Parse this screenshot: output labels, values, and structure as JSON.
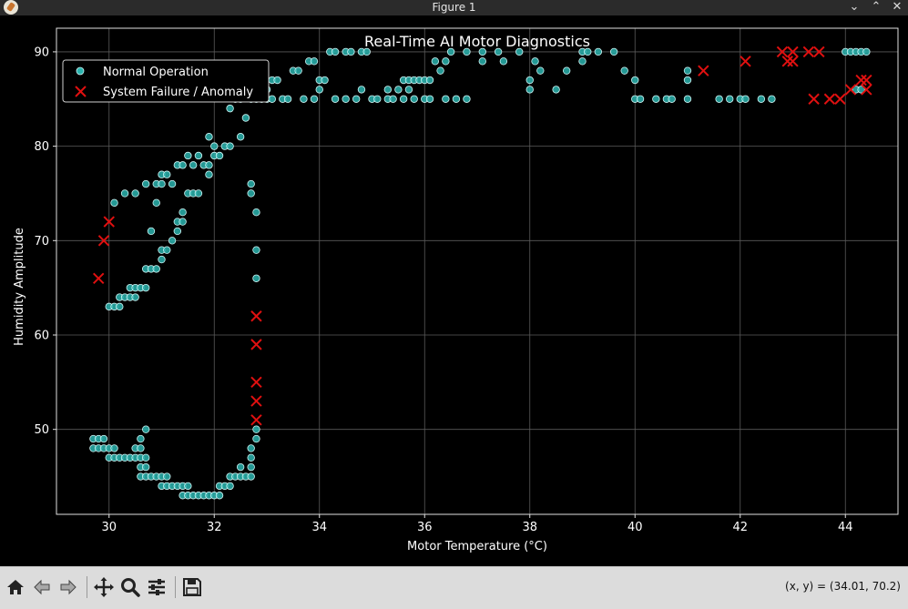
{
  "window": {
    "title": "Figure 1"
  },
  "toolbar": {
    "buttons": [
      {
        "name": "home-icon"
      },
      {
        "name": "back-icon"
      },
      {
        "name": "forward-icon"
      },
      {
        "name": "pan-icon"
      },
      {
        "name": "zoom-icon"
      },
      {
        "name": "configure-subplots-icon"
      },
      {
        "name": "save-icon"
      }
    ],
    "coords": "(x, y) = (34.01, 70.2)"
  },
  "chart_data": {
    "type": "scatter",
    "title": "Real-Time AI Motor Diagnostics",
    "xlabel": "Motor Temperature (°C)",
    "ylabel": "Humidity Amplitude",
    "xlim": [
      29.0,
      45.0
    ],
    "ylim": [
      41.0,
      92.5
    ],
    "xticks": [
      30,
      32,
      34,
      36,
      38,
      40,
      42,
      44
    ],
    "yticks": [
      50,
      60,
      70,
      80,
      90
    ],
    "grid": true,
    "background": "#000000",
    "legend": {
      "placement": "top-left"
    },
    "series": [
      {
        "name": "Normal Operation",
        "marker": "circle",
        "color": "#2ab3ae",
        "edge": "#cff5f5",
        "points": [
          [
            29.7,
            49
          ],
          [
            29.8,
            49
          ],
          [
            29.9,
            49
          ],
          [
            29.7,
            48
          ],
          [
            29.8,
            48
          ],
          [
            29.9,
            48
          ],
          [
            30.0,
            48
          ],
          [
            30.1,
            48
          ],
          [
            30.0,
            47
          ],
          [
            30.1,
            47
          ],
          [
            30.2,
            47
          ],
          [
            30.3,
            47
          ],
          [
            30.4,
            47
          ],
          [
            30.5,
            47
          ],
          [
            30.6,
            47
          ],
          [
            30.7,
            47
          ],
          [
            30.5,
            48
          ],
          [
            30.6,
            48
          ],
          [
            30.6,
            49
          ],
          [
            30.7,
            50
          ],
          [
            30.6,
            46
          ],
          [
            30.7,
            46
          ],
          [
            30.6,
            45
          ],
          [
            30.7,
            45
          ],
          [
            30.8,
            45
          ],
          [
            30.9,
            45
          ],
          [
            31.0,
            45
          ],
          [
            31.1,
            45
          ],
          [
            31.0,
            44
          ],
          [
            31.1,
            44
          ],
          [
            31.2,
            44
          ],
          [
            31.3,
            44
          ],
          [
            31.4,
            44
          ],
          [
            31.5,
            44
          ],
          [
            31.4,
            43
          ],
          [
            31.5,
            43
          ],
          [
            31.6,
            43
          ],
          [
            31.7,
            43
          ],
          [
            31.8,
            43
          ],
          [
            31.9,
            43
          ],
          [
            32.0,
            43
          ],
          [
            32.1,
            43
          ],
          [
            32.1,
            44
          ],
          [
            32.2,
            44
          ],
          [
            32.3,
            44
          ],
          [
            32.3,
            45
          ],
          [
            32.4,
            45
          ],
          [
            32.5,
            45
          ],
          [
            32.6,
            45
          ],
          [
            32.7,
            45
          ],
          [
            32.5,
            46
          ],
          [
            32.7,
            46
          ],
          [
            32.7,
            47
          ],
          [
            32.7,
            48
          ],
          [
            32.8,
            49
          ],
          [
            32.8,
            50
          ],
          [
            30.0,
            63
          ],
          [
            30.1,
            63
          ],
          [
            30.2,
            63
          ],
          [
            30.2,
            64
          ],
          [
            30.3,
            64
          ],
          [
            30.4,
            64
          ],
          [
            30.5,
            64
          ],
          [
            30.4,
            65
          ],
          [
            30.5,
            65
          ],
          [
            30.6,
            65
          ],
          [
            30.7,
            65
          ],
          [
            30.7,
            67
          ],
          [
            30.8,
            67
          ],
          [
            30.9,
            67
          ],
          [
            31.0,
            68
          ],
          [
            31.0,
            69
          ],
          [
            31.1,
            69
          ],
          [
            31.2,
            70
          ],
          [
            31.3,
            71
          ],
          [
            31.3,
            72
          ],
          [
            31.4,
            72
          ],
          [
            31.4,
            73
          ],
          [
            30.8,
            71
          ],
          [
            30.9,
            74
          ],
          [
            30.1,
            74
          ],
          [
            30.3,
            75
          ],
          [
            30.5,
            75
          ],
          [
            30.7,
            76
          ],
          [
            30.9,
            76
          ],
          [
            31.0,
            76
          ],
          [
            31.2,
            76
          ],
          [
            31.0,
            77
          ],
          [
            31.1,
            77
          ],
          [
            31.3,
            78
          ],
          [
            31.4,
            78
          ],
          [
            31.5,
            79
          ],
          [
            31.6,
            78
          ],
          [
            31.7,
            79
          ],
          [
            31.8,
            78
          ],
          [
            31.9,
            78
          ],
          [
            31.9,
            77
          ],
          [
            31.9,
            81
          ],
          [
            32.0,
            80
          ],
          [
            32.0,
            79
          ],
          [
            32.1,
            79
          ],
          [
            32.2,
            80
          ],
          [
            32.3,
            80
          ],
          [
            31.5,
            75
          ],
          [
            31.6,
            75
          ],
          [
            31.7,
            75
          ],
          [
            32.3,
            84
          ],
          [
            32.4,
            85
          ],
          [
            32.5,
            85
          ],
          [
            32.5,
            81
          ],
          [
            32.6,
            83
          ],
          [
            32.7,
            85
          ],
          [
            32.8,
            85
          ],
          [
            32.9,
            85
          ],
          [
            33.0,
            85
          ],
          [
            33.1,
            85
          ],
          [
            33.0,
            86
          ],
          [
            33.1,
            87
          ],
          [
            33.2,
            87
          ],
          [
            33.3,
            85
          ],
          [
            33.4,
            85
          ],
          [
            33.5,
            88
          ],
          [
            33.6,
            88
          ],
          [
            33.7,
            85
          ],
          [
            33.8,
            89
          ],
          [
            33.9,
            89
          ],
          [
            33.9,
            85
          ],
          [
            34.0,
            87
          ],
          [
            34.0,
            86
          ],
          [
            34.1,
            87
          ],
          [
            34.2,
            90
          ],
          [
            34.3,
            90
          ],
          [
            34.3,
            85
          ],
          [
            34.5,
            90
          ],
          [
            34.6,
            90
          ],
          [
            34.5,
            85
          ],
          [
            34.7,
            85
          ],
          [
            34.8,
            86
          ],
          [
            34.8,
            90
          ],
          [
            34.9,
            90
          ],
          [
            35.0,
            85
          ],
          [
            35.1,
            85
          ],
          [
            35.3,
            86
          ],
          [
            35.3,
            85
          ],
          [
            35.4,
            85
          ],
          [
            35.5,
            86
          ],
          [
            35.6,
            87
          ],
          [
            35.7,
            87
          ],
          [
            35.8,
            87
          ],
          [
            35.9,
            87
          ],
          [
            36.0,
            87
          ],
          [
            36.1,
            87
          ],
          [
            35.7,
            86
          ],
          [
            35.6,
            85
          ],
          [
            35.8,
            85
          ],
          [
            36.0,
            85
          ],
          [
            36.1,
            85
          ],
          [
            36.2,
            89
          ],
          [
            36.3,
            88
          ],
          [
            36.4,
            89
          ],
          [
            36.4,
            85
          ],
          [
            36.6,
            85
          ],
          [
            36.5,
            90
          ],
          [
            36.8,
            90
          ],
          [
            36.8,
            85
          ],
          [
            37.1,
            90
          ],
          [
            37.1,
            89
          ],
          [
            37.4,
            90
          ],
          [
            37.5,
            89
          ],
          [
            37.8,
            90
          ],
          [
            38.0,
            87
          ],
          [
            38.0,
            86
          ],
          [
            38.1,
            89
          ],
          [
            38.2,
            88
          ],
          [
            38.5,
            86
          ],
          [
            38.7,
            88
          ],
          [
            39.0,
            90
          ],
          [
            39.1,
            90
          ],
          [
            39.0,
            89
          ],
          [
            39.3,
            90
          ],
          [
            39.6,
            90
          ],
          [
            39.8,
            88
          ],
          [
            40.0,
            87
          ],
          [
            40.0,
            85
          ],
          [
            40.1,
            85
          ],
          [
            40.4,
            85
          ],
          [
            40.6,
            85
          ],
          [
            40.7,
            85
          ],
          [
            41.0,
            85
          ],
          [
            41.0,
            87
          ],
          [
            41.0,
            88
          ],
          [
            41.6,
            85
          ],
          [
            41.8,
            85
          ],
          [
            42.0,
            85
          ],
          [
            42.1,
            85
          ],
          [
            42.4,
            85
          ],
          [
            42.6,
            85
          ],
          [
            32.7,
            76
          ],
          [
            32.7,
            75
          ],
          [
            32.8,
            73
          ],
          [
            32.8,
            69
          ],
          [
            32.8,
            66
          ],
          [
            44.0,
            90
          ],
          [
            44.1,
            90
          ],
          [
            44.2,
            90
          ],
          [
            44.3,
            90
          ],
          [
            44.4,
            90
          ],
          [
            44.2,
            86
          ],
          [
            44.3,
            86
          ]
        ]
      },
      {
        "name": "System Failure / Anomaly",
        "marker": "x",
        "color": "#e01010",
        "points": [
          [
            29.8,
            66
          ],
          [
            29.9,
            70
          ],
          [
            30.0,
            72
          ],
          [
            32.8,
            62
          ],
          [
            32.8,
            59
          ],
          [
            32.8,
            55
          ],
          [
            32.8,
            53
          ],
          [
            32.8,
            51
          ],
          [
            41.3,
            88
          ],
          [
            42.1,
            89
          ],
          [
            42.8,
            90
          ],
          [
            42.9,
            89
          ],
          [
            43.0,
            90
          ],
          [
            43.0,
            89
          ],
          [
            43.3,
            90
          ],
          [
            43.5,
            90
          ],
          [
            43.4,
            85
          ],
          [
            43.7,
            85
          ],
          [
            43.9,
            85
          ],
          [
            44.1,
            86
          ],
          [
            44.3,
            87
          ],
          [
            44.4,
            87
          ],
          [
            44.4,
            86
          ]
        ]
      }
    ]
  }
}
